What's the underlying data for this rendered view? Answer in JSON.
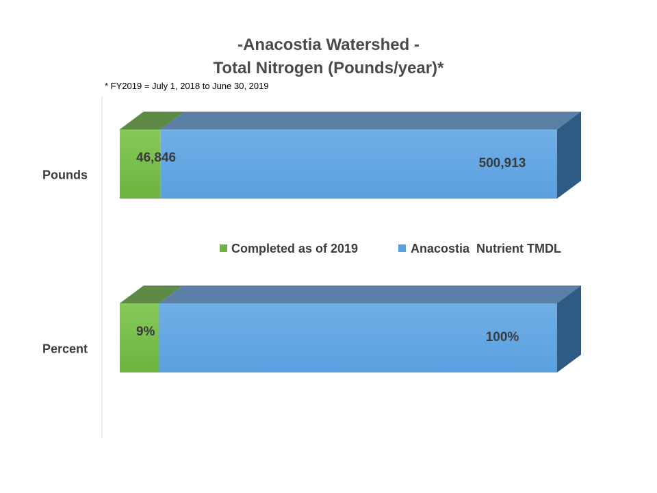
{
  "colors": {
    "completed": "#6db33f",
    "completed_top": "#5e8a45",
    "tmdl": "#5aa0e0",
    "tmdl_top": "#5a80a8",
    "tmdl_side": "#2e5a84"
  },
  "chart_data": {
    "type": "bar",
    "orientation": "horizontal",
    "stacked": true,
    "title_line1": "-Anacostia Watershed -",
    "title_line2": "Total Nitrogen (Pounds/year)*",
    "footnote": "* FY2019 = July 1, 2018 to June 30, 2019",
    "legend_position": "center",
    "categories": [
      "Pounds",
      "Percent"
    ],
    "series": [
      {
        "name": "Completed as of 2019",
        "values": [
          46846,
          9
        ],
        "labels": [
          "46,846",
          "9%"
        ]
      },
      {
        "name": "Anacostia  Nutrient TMDL",
        "values": [
          500913,
          100
        ],
        "labels": [
          "500,913",
          "100%"
        ]
      }
    ]
  }
}
